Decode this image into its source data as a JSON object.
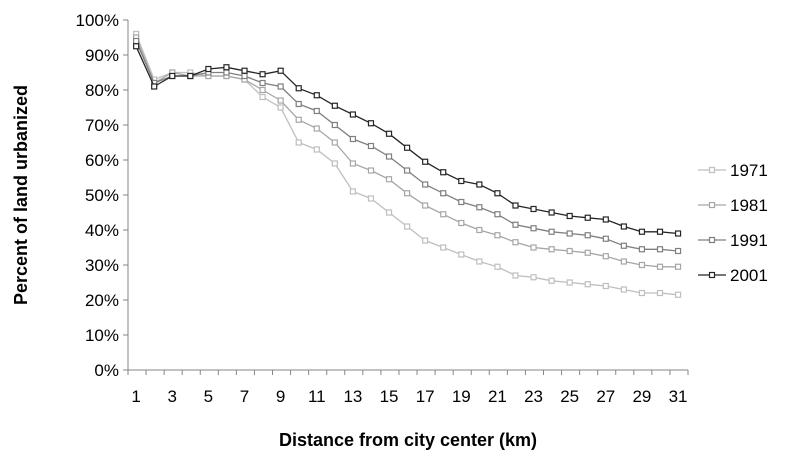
{
  "chart_data": {
    "type": "line",
    "xlabel": "Distance from city center (km)",
    "ylabel": "Percent of land urbanized",
    "x": [
      1,
      2,
      3,
      4,
      5,
      6,
      7,
      8,
      9,
      10,
      11,
      12,
      13,
      14,
      15,
      16,
      17,
      18,
      19,
      20,
      21,
      22,
      23,
      24,
      25,
      26,
      27,
      28,
      29,
      30,
      31
    ],
    "x_tick_labels": [
      "1",
      "3",
      "5",
      "7",
      "9",
      "11",
      "13",
      "15",
      "17",
      "19",
      "21",
      "23",
      "25",
      "27",
      "29",
      "31"
    ],
    "x_tick_values": [
      1,
      3,
      5,
      7,
      9,
      11,
      13,
      15,
      17,
      19,
      21,
      23,
      25,
      27,
      29,
      31
    ],
    "y_tick_labels": [
      "0%",
      "10%",
      "20%",
      "30%",
      "40%",
      "50%",
      "60%",
      "70%",
      "80%",
      "90%",
      "100%"
    ],
    "ylim": [
      0,
      100
    ],
    "y_unit": "percent",
    "grid": false,
    "legend_position": "right",
    "series": [
      {
        "name": "1971",
        "color": "#bfbfbf",
        "values": [
          96,
          83,
          85,
          85,
          84,
          84,
          83,
          78,
          75,
          65,
          63,
          59,
          51,
          49,
          45,
          41,
          37,
          35,
          33,
          31,
          29.5,
          27,
          26.5,
          25.5,
          25,
          24.5,
          24,
          23,
          22,
          22,
          21.5
        ]
      },
      {
        "name": "1981",
        "color": "#a6a6a6",
        "values": [
          95,
          82,
          85,
          84,
          84,
          84,
          83,
          80,
          77,
          71.5,
          69,
          65,
          59,
          57,
          54.5,
          50.5,
          47,
          44.5,
          42,
          40,
          38.5,
          36.5,
          35,
          34.5,
          34,
          33.5,
          32.5,
          31,
          30,
          29.5,
          29.5
        ]
      },
      {
        "name": "1991",
        "color": "#7f7f7f",
        "values": [
          94,
          82,
          84,
          84,
          85,
          85,
          84,
          82,
          81,
          76,
          74,
          70,
          66,
          64,
          61,
          57,
          53,
          50.5,
          48,
          46.5,
          44.5,
          41.5,
          40.5,
          39.5,
          39,
          38.5,
          37.5,
          35.5,
          34.5,
          34.5,
          34
        ]
      },
      {
        "name": "2001",
        "color": "#262626",
        "values": [
          92.5,
          81,
          84,
          84,
          86,
          86.5,
          85.5,
          84.5,
          85.5,
          80.5,
          78.5,
          75.5,
          73,
          70.5,
          67.5,
          63.5,
          59.5,
          56.5,
          54,
          53,
          50.5,
          47,
          46,
          45,
          44,
          43.5,
          43,
          41,
          39.5,
          39.5,
          39
        ]
      }
    ]
  }
}
